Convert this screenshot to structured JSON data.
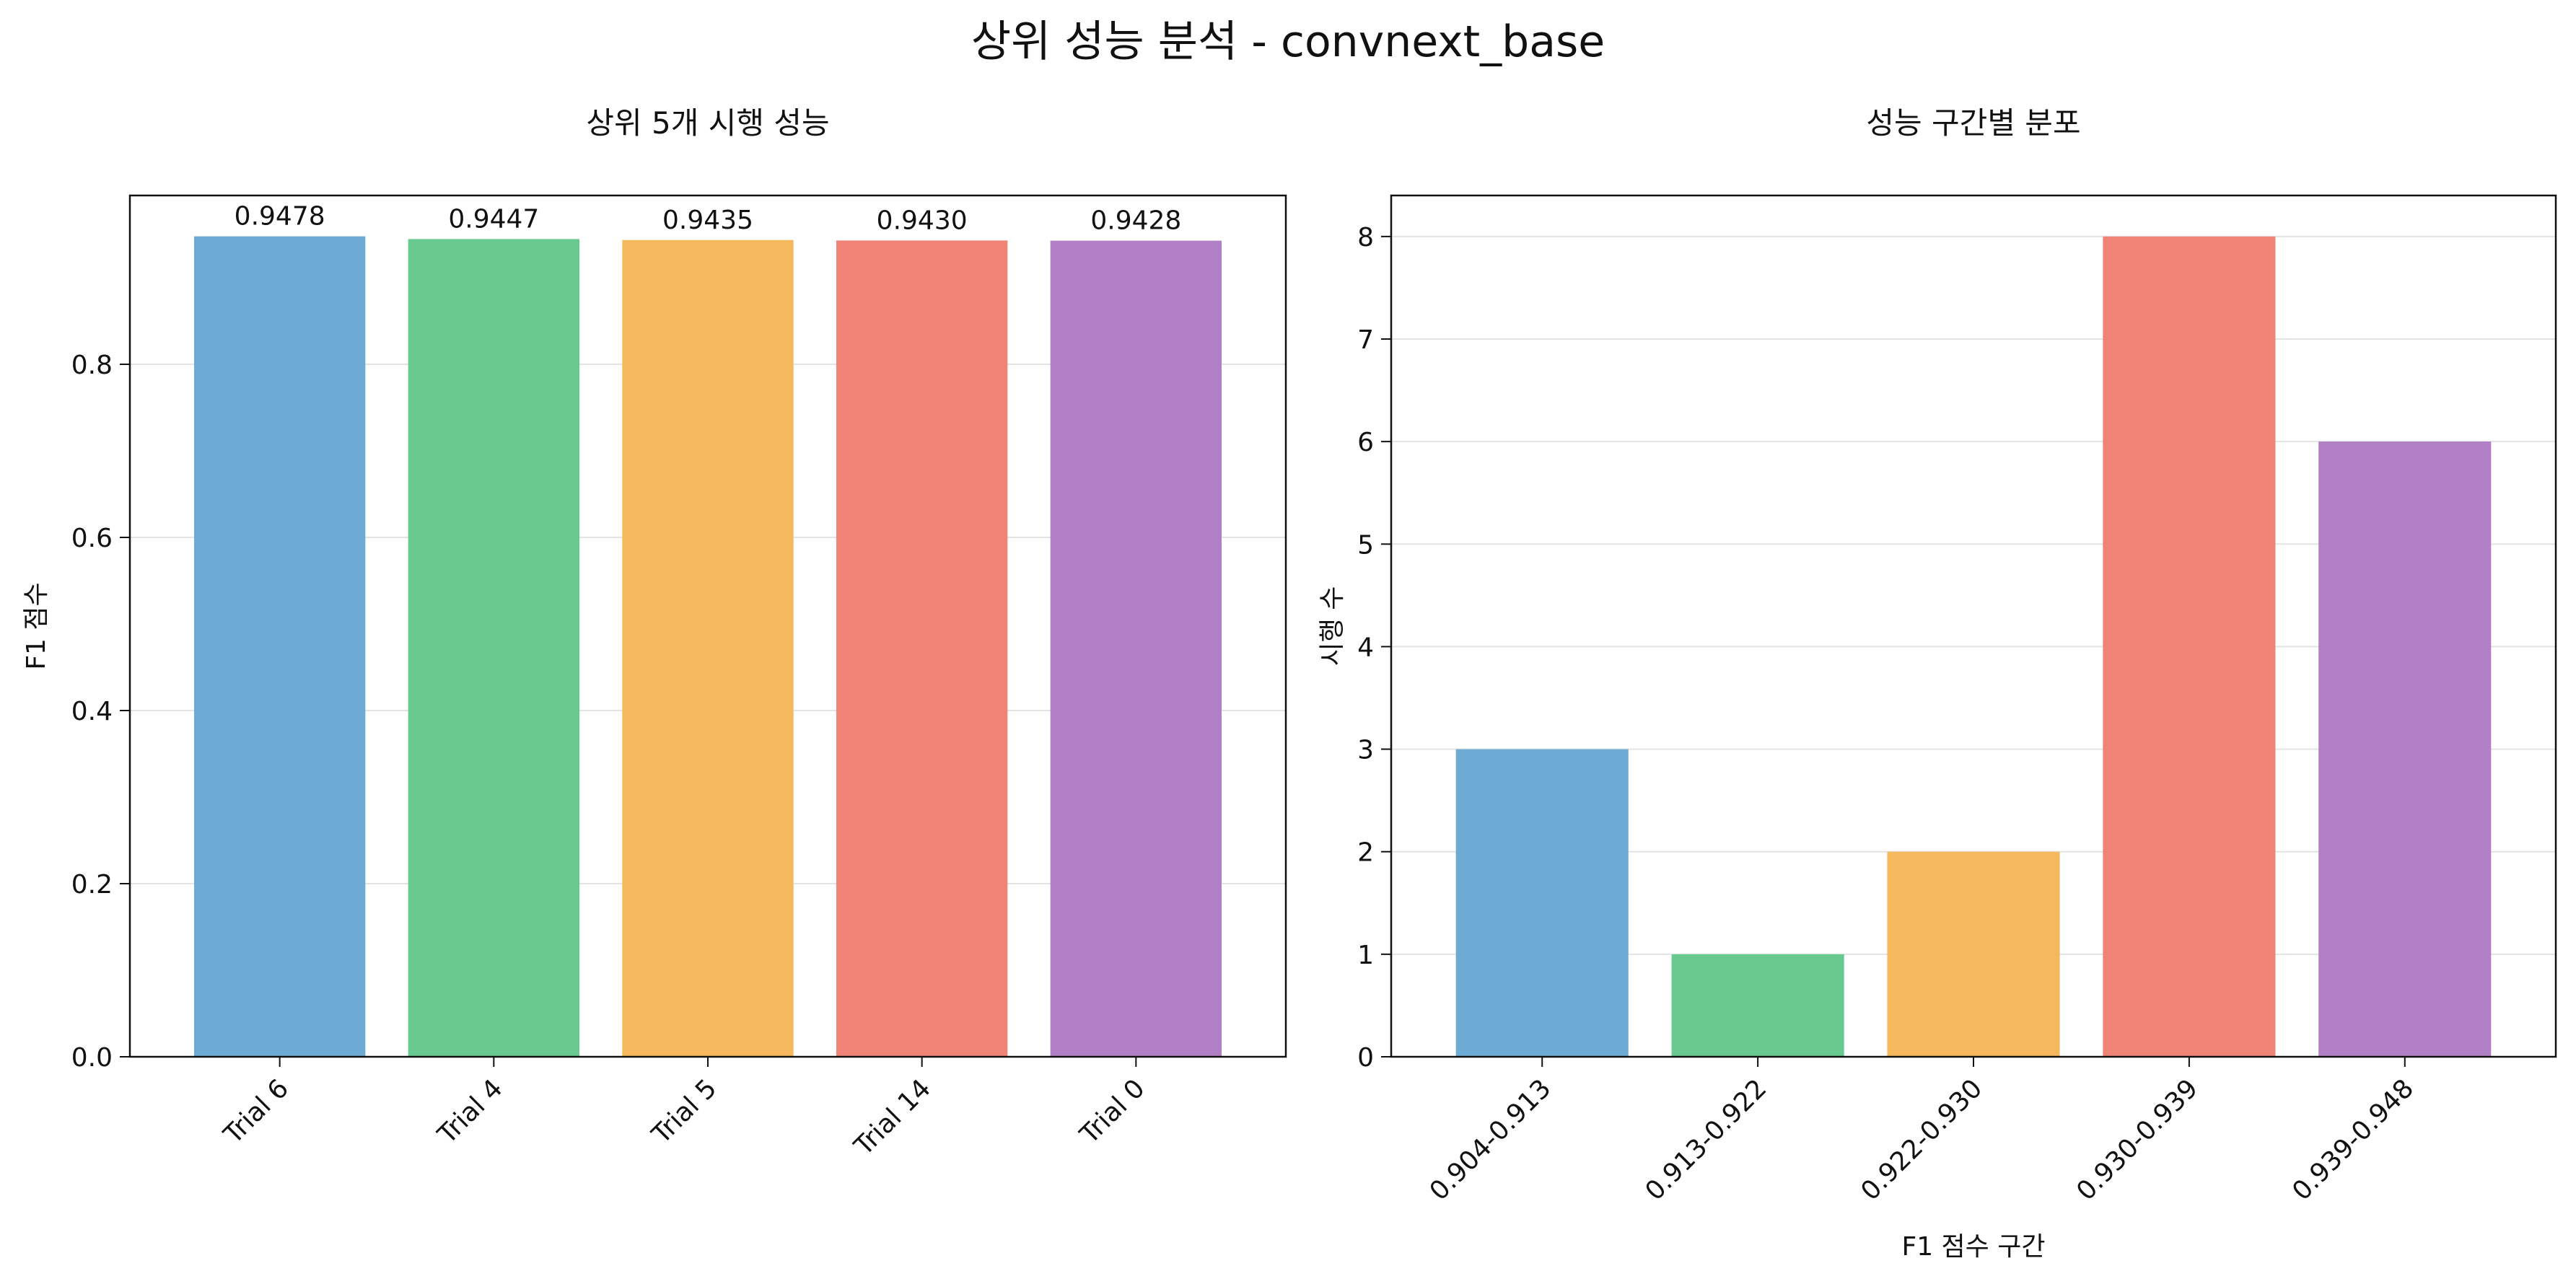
{
  "suptitle": "상위 성능 분석 - convnext_base",
  "chart_data": [
    {
      "type": "bar",
      "title": "상위 5개 시행 성능",
      "xlabel": "",
      "ylabel": "F1 점수",
      "categories": [
        "Trial 6",
        "Trial 4",
        "Trial 5",
        "Trial 14",
        "Trial 0"
      ],
      "values": [
        0.9478,
        0.9447,
        0.9435,
        0.943,
        0.9428
      ],
      "value_labels": [
        "0.9478",
        "0.9447",
        "0.9435",
        "0.9430",
        "0.9428"
      ],
      "colors": [
        "#6daad4",
        "#69ca8f",
        "#f5b85c",
        "#ee8376",
        "#b07fc6"
      ],
      "ylim": [
        0,
        0.995
      ],
      "yticks": [
        0.0,
        0.2,
        0.4,
        0.6,
        0.8
      ],
      "ytick_labels": [
        "0.0",
        "0.2",
        "0.4",
        "0.6",
        "0.8"
      ],
      "grid": "y",
      "xtick_rotation": 45
    },
    {
      "type": "bar",
      "title": "성능 구간별 분포",
      "xlabel": "F1 점수 구간",
      "ylabel": "시행 수",
      "categories": [
        "0.904-0.913",
        "0.913-0.922",
        "0.922-0.930",
        "0.930-0.939",
        "0.939-0.948"
      ],
      "values": [
        3,
        1,
        2,
        8,
        6
      ],
      "colors": [
        "#6daad4",
        "#69ca8f",
        "#f5b85c",
        "#ee8376",
        "#b07fc6"
      ],
      "ylim": [
        0,
        8.4
      ],
      "yticks": [
        0,
        1,
        2,
        3,
        4,
        5,
        6,
        7,
        8
      ],
      "ytick_labels": [
        "0",
        "1",
        "2",
        "3",
        "4",
        "5",
        "6",
        "7",
        "8"
      ],
      "grid": "y",
      "xtick_rotation": 45
    }
  ]
}
